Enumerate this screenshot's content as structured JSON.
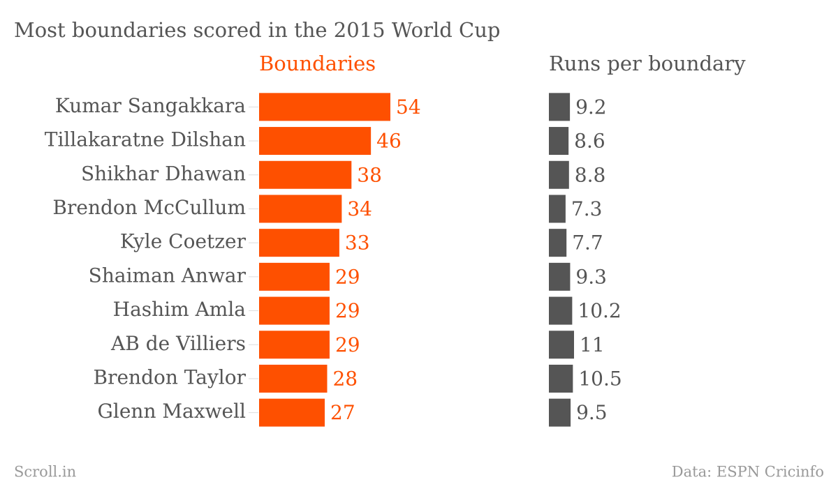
{
  "chart_data": {
    "type": "bar",
    "title": "Most boundaries scored in the 2015 World Cup",
    "categories": [
      "Kumar Sangakkara",
      "Tillakaratne Dilshan",
      "Shikhar Dhawan",
      "Brendon McCullum",
      "Kyle Coetzer",
      "Shaiman Anwar",
      "Hashim Amla",
      "AB de Villiers",
      "Brendon Taylor",
      "Glenn Maxwell"
    ],
    "series": [
      {
        "name": "Boundaries",
        "color": "#fe5000",
        "values": [
          54,
          46,
          38,
          34,
          33,
          29,
          29,
          29,
          28,
          27
        ]
      },
      {
        "name": "Runs per boundary",
        "color": "#555555",
        "values": [
          9.2,
          8.6,
          8.8,
          7.3,
          7.7,
          9.3,
          10.2,
          11,
          10.5,
          9.5
        ]
      }
    ],
    "credit": "Scroll.in",
    "source": "Data: ESPN Cricinfo"
  }
}
